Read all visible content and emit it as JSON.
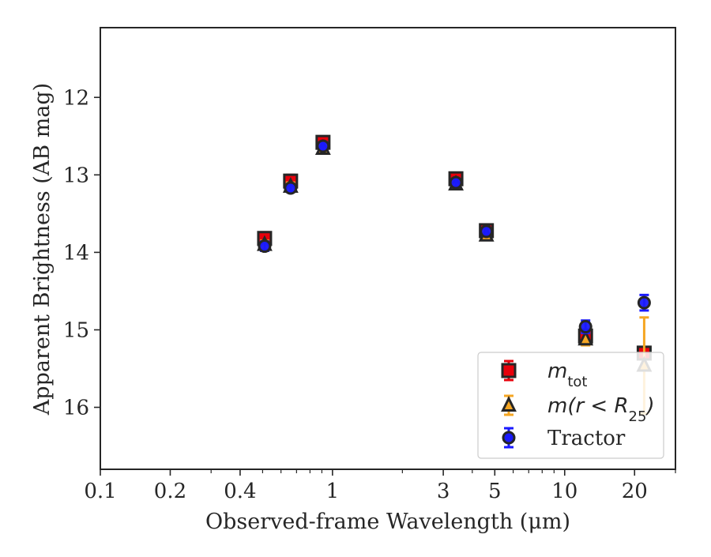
{
  "chart_data": {
    "type": "scatter",
    "title": "",
    "xlabel": "Observed-frame Wavelength (μm)",
    "ylabel": "Apparent Brightness (AB mag)",
    "xscale": "log",
    "xlim": [
      0.1,
      30
    ],
    "ylim": [
      16.8,
      11.1
    ],
    "y_inverted": true,
    "grid": false,
    "legend_position": "lower-right",
    "x_ticks": [
      0.1,
      0.2,
      0.4,
      1,
      3,
      5,
      10,
      20
    ],
    "x_tick_labels": [
      "0.1",
      "0.2",
      "0.4",
      "1",
      "3",
      "5",
      "10",
      "20"
    ],
    "y_ticks": [
      12,
      13,
      14,
      15,
      16
    ],
    "y_tick_labels": [
      "12",
      "13",
      "14",
      "15",
      "16"
    ],
    "series": [
      {
        "name": "m_tot",
        "legend_main": "m",
        "legend_sub": "tot",
        "marker": "square",
        "color": "#e8000b",
        "edge_color": "#262626",
        "errorbar_color": "#e8000b",
        "points": [
          {
            "x": 0.51,
            "y": 13.82,
            "yerr": 0.08
          },
          {
            "x": 0.66,
            "y": 13.08,
            "yerr": 0.08
          },
          {
            "x": 0.91,
            "y": 12.58,
            "yerr": 0.05
          },
          {
            "x": 3.4,
            "y": 13.05,
            "yerr": 0.06
          },
          {
            "x": 4.6,
            "y": 13.72,
            "yerr": 0.05
          },
          {
            "x": 12.3,
            "y": 15.08,
            "yerr": 0.06
          },
          {
            "x": 22.0,
            "y": 15.3,
            "yerr": 0.08
          }
        ]
      },
      {
        "name": "m(r < R25)",
        "legend_main": "m(r < R",
        "legend_sub": "25",
        "legend_end": ")",
        "marker": "triangle",
        "color": "#f5a623",
        "edge_color": "#262626",
        "errorbar_color": "#f5a623",
        "points": [
          {
            "x": 0.51,
            "y": 13.9,
            "yerr": 0.05
          },
          {
            "x": 0.66,
            "y": 13.15,
            "yerr": 0.05
          },
          {
            "x": 0.91,
            "y": 12.66,
            "yerr": 0.05
          },
          {
            "x": 3.4,
            "y": 13.12,
            "yerr": 0.05
          },
          {
            "x": 4.6,
            "y": 13.78,
            "yerr": 0.05
          },
          {
            "x": 12.3,
            "y": 15.12,
            "yerr": 0.08
          },
          {
            "x": 22.0,
            "y": 15.46,
            "yerr": 0.62
          }
        ]
      },
      {
        "name": "Tractor",
        "legend_main": "Tractor",
        "marker": "circle",
        "color": "#1a1aff",
        "edge_color": "#262626",
        "errorbar_color": "#1a1aff",
        "points": [
          {
            "x": 0.51,
            "y": 13.92,
            "yerr": 0.06
          },
          {
            "x": 0.66,
            "y": 13.17,
            "yerr": 0.05
          },
          {
            "x": 0.91,
            "y": 12.63,
            "yerr": 0.05
          },
          {
            "x": 3.4,
            "y": 13.1,
            "yerr": 0.05
          },
          {
            "x": 4.6,
            "y": 13.73,
            "yerr": 0.05
          },
          {
            "x": 12.3,
            "y": 14.96,
            "yerr": 0.08
          },
          {
            "x": 22.0,
            "y": 14.65,
            "yerr": 0.1
          }
        ]
      }
    ]
  }
}
